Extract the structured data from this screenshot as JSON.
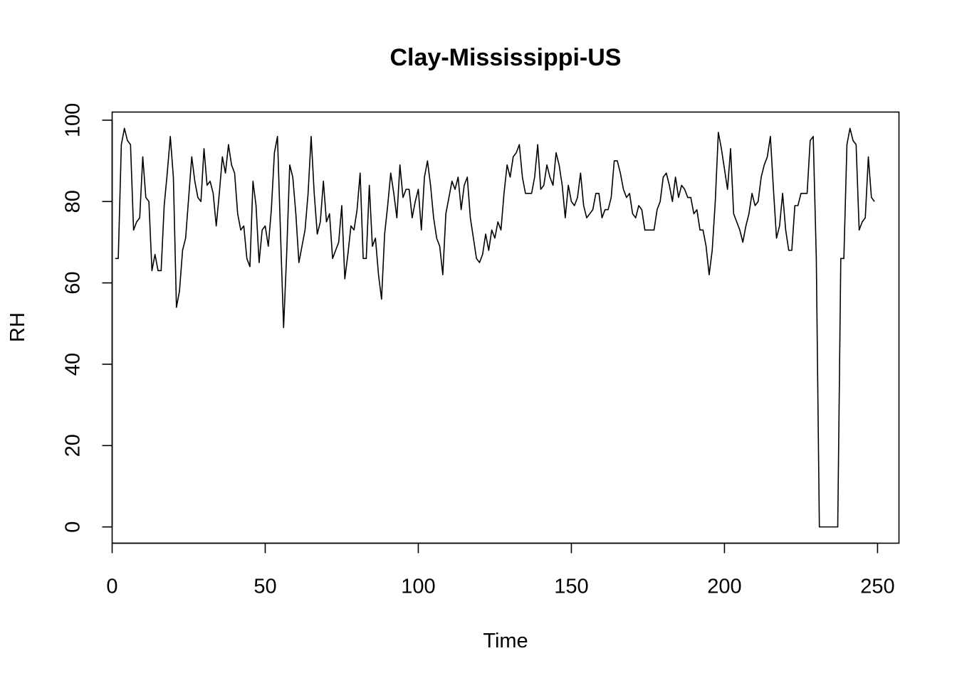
{
  "chart_data": {
    "type": "line",
    "title": "Clay-Mississippi-US",
    "xlabel": "Time",
    "ylabel": "RH",
    "xlim": [
      0,
      257
    ],
    "ylim": [
      -4,
      102
    ],
    "x_ticks": [
      0,
      50,
      100,
      150,
      200,
      250
    ],
    "y_ticks": [
      0,
      20,
      40,
      60,
      80,
      100
    ],
    "grid": false,
    "line_color": "#000000",
    "series": [
      {
        "x_start": 1,
        "values": [
          66,
          66,
          94,
          98,
          95,
          94,
          73,
          75,
          76,
          91,
          81,
          80,
          63,
          67,
          63,
          63,
          79,
          87,
          96,
          86,
          54,
          58,
          68,
          71,
          81,
          91,
          85,
          81,
          80,
          93,
          84,
          85,
          82,
          74,
          82,
          91,
          87,
          94,
          89,
          87,
          77,
          73,
          74,
          66,
          64,
          85,
          79,
          65,
          73,
          74,
          69,
          78,
          92,
          96,
          72,
          49,
          67,
          89,
          86,
          77,
          65,
          69,
          73,
          82,
          96,
          82,
          72,
          75,
          85,
          75,
          77,
          66,
          68,
          70,
          79,
          61,
          67,
          74,
          73,
          78,
          87,
          66,
          66,
          84,
          69,
          71,
          62,
          56,
          72,
          79,
          87,
          82,
          76,
          89,
          81,
          83,
          83,
          76,
          80,
          83,
          73,
          86,
          90,
          84,
          76,
          71,
          69,
          62,
          77,
          81,
          85,
          83,
          86,
          78,
          84,
          86,
          76,
          71,
          66,
          65,
          67,
          72,
          68,
          73,
          71,
          75,
          73,
          82,
          89,
          86,
          91,
          92,
          94,
          86,
          82,
          82,
          82,
          86,
          94,
          83,
          84,
          89,
          86,
          84,
          92,
          89,
          84,
          76,
          84,
          80,
          79,
          81,
          87,
          79,
          76,
          77,
          78,
          82,
          82,
          76,
          78,
          78,
          81,
          90,
          90,
          87,
          83,
          81,
          82,
          77,
          76,
          79,
          78,
          73,
          73,
          73,
          73,
          78,
          80,
          86,
          87,
          84,
          80,
          86,
          81,
          84,
          83,
          81,
          81,
          77,
          78,
          73,
          73,
          69,
          62,
          68,
          80,
          97,
          93,
          88,
          83,
          93,
          77,
          75,
          73,
          70,
          74,
          77,
          82,
          79,
          80,
          86,
          89,
          91,
          96,
          83,
          71,
          74,
          82,
          73,
          68,
          68,
          79,
          79,
          82,
          82,
          82,
          95,
          96,
          66,
          0,
          0,
          0,
          0,
          0,
          0,
          0,
          66,
          66,
          94,
          98,
          95,
          94,
          73,
          75,
          76,
          91,
          81,
          80
        ]
      }
    ]
  }
}
